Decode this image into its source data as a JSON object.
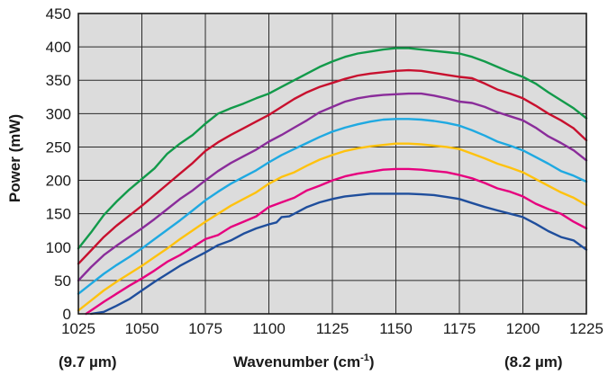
{
  "chart_data": {
    "type": "line",
    "title": "",
    "xlabel": "Wavenumber (cm",
    "xlabel_sup": "-1",
    "xlabel_suffix": ")",
    "xlabel_left_note": "(9.7 µm)",
    "xlabel_right_note": "(8.2 µm)",
    "ylabel": "Power (mW)",
    "xlim": [
      1025,
      1225
    ],
    "ylim": [
      0,
      450
    ],
    "x_ticks": [
      1025,
      1050,
      1075,
      1100,
      1125,
      1150,
      1175,
      1200,
      1225
    ],
    "y_ticks": [
      0,
      50,
      100,
      150,
      200,
      250,
      300,
      350,
      400,
      450
    ],
    "grid": true,
    "plot_background": "#dcdcdc",
    "series": [
      {
        "color": "#1f4e9c",
        "points": [
          [
            1030,
            0
          ],
          [
            1035,
            3
          ],
          [
            1040,
            12
          ],
          [
            1045,
            22
          ],
          [
            1050,
            35
          ],
          [
            1055,
            48
          ],
          [
            1060,
            60
          ],
          [
            1065,
            72
          ],
          [
            1070,
            82
          ],
          [
            1075,
            92
          ],
          [
            1080,
            103
          ],
          [
            1085,
            110
          ],
          [
            1090,
            120
          ],
          [
            1095,
            128
          ],
          [
            1100,
            134
          ],
          [
            1103,
            137
          ],
          [
            1105,
            145
          ],
          [
            1108,
            146
          ],
          [
            1110,
            150
          ],
          [
            1115,
            160
          ],
          [
            1120,
            167
          ],
          [
            1125,
            172
          ],
          [
            1130,
            176
          ],
          [
            1135,
            178
          ],
          [
            1140,
            180
          ],
          [
            1145,
            180
          ],
          [
            1150,
            180
          ],
          [
            1155,
            180
          ],
          [
            1160,
            179
          ],
          [
            1165,
            178
          ],
          [
            1170,
            175
          ],
          [
            1175,
            172
          ],
          [
            1180,
            166
          ],
          [
            1185,
            160
          ],
          [
            1190,
            155
          ],
          [
            1195,
            150
          ],
          [
            1200,
            145
          ],
          [
            1205,
            135
          ],
          [
            1210,
            124
          ],
          [
            1215,
            115
          ],
          [
            1220,
            110
          ],
          [
            1225,
            96
          ]
        ]
      },
      {
        "color": "#e6007e",
        "points": [
          [
            1028,
            0
          ],
          [
            1030,
            5
          ],
          [
            1035,
            18
          ],
          [
            1040,
            30
          ],
          [
            1045,
            42
          ],
          [
            1050,
            53
          ],
          [
            1055,
            65
          ],
          [
            1060,
            78
          ],
          [
            1065,
            88
          ],
          [
            1070,
            100
          ],
          [
            1075,
            112
          ],
          [
            1080,
            118
          ],
          [
            1085,
            130
          ],
          [
            1090,
            138
          ],
          [
            1095,
            146
          ],
          [
            1100,
            160
          ],
          [
            1105,
            167
          ],
          [
            1110,
            174
          ],
          [
            1115,
            185
          ],
          [
            1120,
            192
          ],
          [
            1125,
            200
          ],
          [
            1130,
            206
          ],
          [
            1135,
            210
          ],
          [
            1140,
            213
          ],
          [
            1145,
            216
          ],
          [
            1150,
            217
          ],
          [
            1155,
            217
          ],
          [
            1160,
            216
          ],
          [
            1165,
            214
          ],
          [
            1170,
            212
          ],
          [
            1175,
            208
          ],
          [
            1180,
            203
          ],
          [
            1185,
            196
          ],
          [
            1190,
            188
          ],
          [
            1195,
            183
          ],
          [
            1200,
            176
          ],
          [
            1205,
            165
          ],
          [
            1210,
            157
          ],
          [
            1215,
            150
          ],
          [
            1220,
            138
          ],
          [
            1225,
            128
          ]
        ]
      },
      {
        "color": "#ffc20e",
        "points": [
          [
            1025,
            5
          ],
          [
            1030,
            20
          ],
          [
            1035,
            35
          ],
          [
            1040,
            48
          ],
          [
            1045,
            60
          ],
          [
            1050,
            72
          ],
          [
            1055,
            85
          ],
          [
            1060,
            98
          ],
          [
            1065,
            112
          ],
          [
            1070,
            125
          ],
          [
            1075,
            138
          ],
          [
            1080,
            150
          ],
          [
            1085,
            162
          ],
          [
            1090,
            172
          ],
          [
            1095,
            182
          ],
          [
            1100,
            195
          ],
          [
            1105,
            205
          ],
          [
            1110,
            212
          ],
          [
            1115,
            222
          ],
          [
            1120,
            231
          ],
          [
            1125,
            238
          ],
          [
            1130,
            244
          ],
          [
            1135,
            248
          ],
          [
            1140,
            251
          ],
          [
            1145,
            253
          ],
          [
            1150,
            255
          ],
          [
            1155,
            255
          ],
          [
            1160,
            254
          ],
          [
            1165,
            252
          ],
          [
            1170,
            250
          ],
          [
            1175,
            247
          ],
          [
            1180,
            240
          ],
          [
            1185,
            233
          ],
          [
            1190,
            225
          ],
          [
            1195,
            219
          ],
          [
            1200,
            212
          ],
          [
            1205,
            202
          ],
          [
            1210,
            192
          ],
          [
            1215,
            182
          ],
          [
            1220,
            174
          ],
          [
            1225,
            163
          ]
        ]
      },
      {
        "color": "#1fa9e1",
        "points": [
          [
            1025,
            30
          ],
          [
            1030,
            45
          ],
          [
            1035,
            60
          ],
          [
            1040,
            73
          ],
          [
            1045,
            85
          ],
          [
            1050,
            98
          ],
          [
            1055,
            112
          ],
          [
            1060,
            126
          ],
          [
            1065,
            140
          ],
          [
            1070,
            155
          ],
          [
            1075,
            170
          ],
          [
            1080,
            183
          ],
          [
            1085,
            195
          ],
          [
            1090,
            205
          ],
          [
            1095,
            215
          ],
          [
            1100,
            227
          ],
          [
            1105,
            238
          ],
          [
            1110,
            247
          ],
          [
            1115,
            256
          ],
          [
            1120,
            265
          ],
          [
            1125,
            273
          ],
          [
            1130,
            279
          ],
          [
            1135,
            284
          ],
          [
            1140,
            288
          ],
          [
            1145,
            291
          ],
          [
            1150,
            292
          ],
          [
            1155,
            292
          ],
          [
            1160,
            291
          ],
          [
            1165,
            289
          ],
          [
            1170,
            286
          ],
          [
            1175,
            282
          ],
          [
            1180,
            275
          ],
          [
            1185,
            267
          ],
          [
            1190,
            258
          ],
          [
            1195,
            252
          ],
          [
            1200,
            245
          ],
          [
            1205,
            235
          ],
          [
            1210,
            225
          ],
          [
            1215,
            214
          ],
          [
            1220,
            207
          ],
          [
            1225,
            198
          ]
        ]
      },
      {
        "color": "#8a2c9a",
        "points": [
          [
            1025,
            50
          ],
          [
            1030,
            70
          ],
          [
            1035,
            88
          ],
          [
            1040,
            102
          ],
          [
            1045,
            115
          ],
          [
            1050,
            128
          ],
          [
            1055,
            142
          ],
          [
            1060,
            157
          ],
          [
            1065,
            172
          ],
          [
            1070,
            185
          ],
          [
            1075,
            200
          ],
          [
            1080,
            214
          ],
          [
            1085,
            226
          ],
          [
            1090,
            236
          ],
          [
            1095,
            246
          ],
          [
            1100,
            258
          ],
          [
            1105,
            268
          ],
          [
            1110,
            279
          ],
          [
            1115,
            290
          ],
          [
            1120,
            302
          ],
          [
            1125,
            310
          ],
          [
            1130,
            318
          ],
          [
            1135,
            323
          ],
          [
            1140,
            326
          ],
          [
            1145,
            328
          ],
          [
            1150,
            329
          ],
          [
            1155,
            330
          ],
          [
            1160,
            330
          ],
          [
            1165,
            327
          ],
          [
            1170,
            323
          ],
          [
            1175,
            318
          ],
          [
            1180,
            316
          ],
          [
            1185,
            310
          ],
          [
            1190,
            302
          ],
          [
            1195,
            296
          ],
          [
            1200,
            290
          ],
          [
            1205,
            279
          ],
          [
            1210,
            266
          ],
          [
            1215,
            256
          ],
          [
            1220,
            245
          ],
          [
            1225,
            230
          ]
        ]
      },
      {
        "color": "#c8102e",
        "points": [
          [
            1025,
            75
          ],
          [
            1030,
            95
          ],
          [
            1035,
            115
          ],
          [
            1040,
            132
          ],
          [
            1045,
            147
          ],
          [
            1050,
            162
          ],
          [
            1055,
            178
          ],
          [
            1060,
            194
          ],
          [
            1065,
            210
          ],
          [
            1070,
            226
          ],
          [
            1075,
            244
          ],
          [
            1080,
            257
          ],
          [
            1085,
            268
          ],
          [
            1090,
            278
          ],
          [
            1095,
            288
          ],
          [
            1100,
            298
          ],
          [
            1105,
            310
          ],
          [
            1110,
            322
          ],
          [
            1115,
            332
          ],
          [
            1120,
            340
          ],
          [
            1125,
            346
          ],
          [
            1130,
            352
          ],
          [
            1135,
            357
          ],
          [
            1140,
            360
          ],
          [
            1145,
            362
          ],
          [
            1150,
            364
          ],
          [
            1155,
            365
          ],
          [
            1160,
            364
          ],
          [
            1165,
            361
          ],
          [
            1170,
            358
          ],
          [
            1175,
            355
          ],
          [
            1180,
            353
          ],
          [
            1185,
            345
          ],
          [
            1190,
            336
          ],
          [
            1195,
            330
          ],
          [
            1200,
            323
          ],
          [
            1205,
            312
          ],
          [
            1210,
            300
          ],
          [
            1215,
            290
          ],
          [
            1220,
            278
          ],
          [
            1225,
            260
          ]
        ]
      },
      {
        "color": "#129a4a",
        "points": [
          [
            1025,
            98
          ],
          [
            1030,
            122
          ],
          [
            1035,
            148
          ],
          [
            1040,
            168
          ],
          [
            1045,
            186
          ],
          [
            1050,
            202
          ],
          [
            1055,
            218
          ],
          [
            1060,
            240
          ],
          [
            1065,
            255
          ],
          [
            1070,
            268
          ],
          [
            1075,
            285
          ],
          [
            1080,
            300
          ],
          [
            1085,
            308
          ],
          [
            1090,
            315
          ],
          [
            1095,
            323
          ],
          [
            1100,
            330
          ],
          [
            1105,
            340
          ],
          [
            1110,
            350
          ],
          [
            1115,
            360
          ],
          [
            1120,
            370
          ],
          [
            1125,
            378
          ],
          [
            1130,
            385
          ],
          [
            1135,
            390
          ],
          [
            1140,
            393
          ],
          [
            1145,
            396
          ],
          [
            1150,
            398
          ],
          [
            1155,
            398
          ],
          [
            1160,
            396
          ],
          [
            1165,
            394
          ],
          [
            1170,
            392
          ],
          [
            1175,
            390
          ],
          [
            1180,
            385
          ],
          [
            1185,
            378
          ],
          [
            1190,
            370
          ],
          [
            1195,
            362
          ],
          [
            1200,
            355
          ],
          [
            1205,
            345
          ],
          [
            1210,
            332
          ],
          [
            1215,
            320
          ],
          [
            1220,
            308
          ],
          [
            1225,
            293
          ]
        ]
      }
    ]
  }
}
